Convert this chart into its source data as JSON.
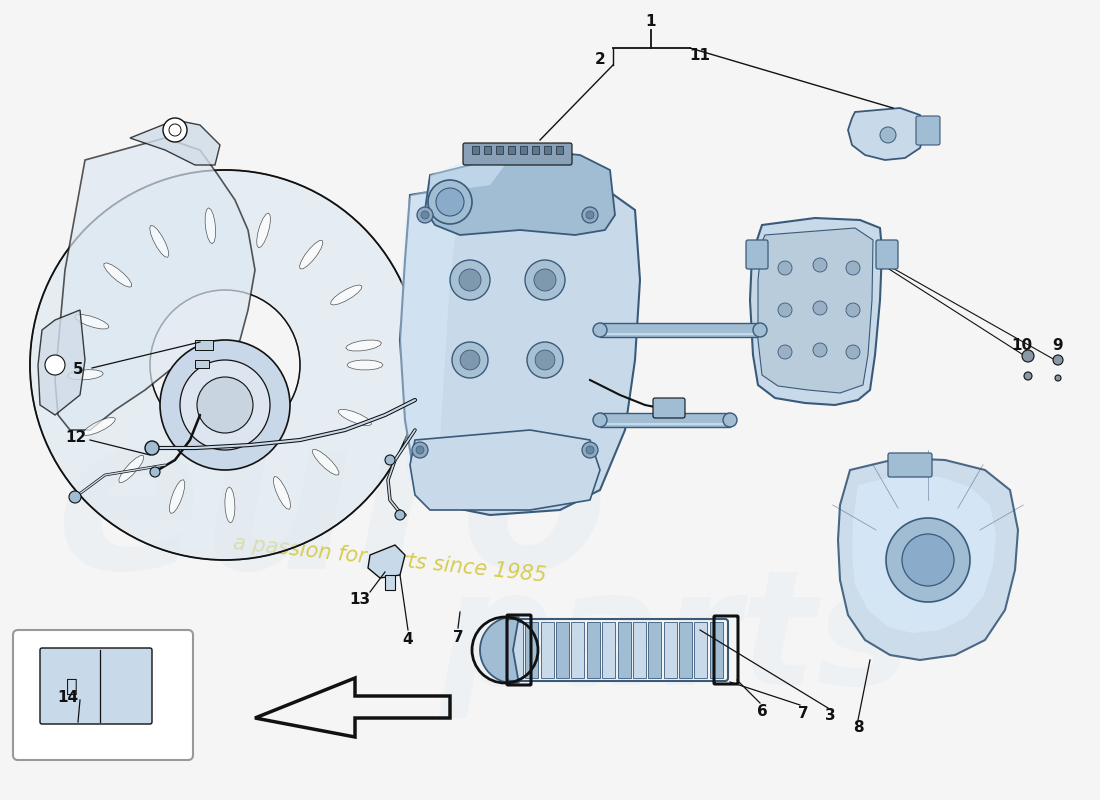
{
  "bg_color": "#f5f5f5",
  "part_color_light": "#c8daea",
  "part_color_mid": "#a0bdd4",
  "part_color_dark": "#7aa0be",
  "part_color_highlight": "#ddeeff",
  "outline_color": "#3a5a7a",
  "line_color": "#111111",
  "label_color": "#111111",
  "watermark_color": "#d8e4ee",
  "tagline_color": "#d4c840",
  "tagline": "a passion for parts since 1985",
  "label_fontsize": 11,
  "bracket_color": "#111111"
}
